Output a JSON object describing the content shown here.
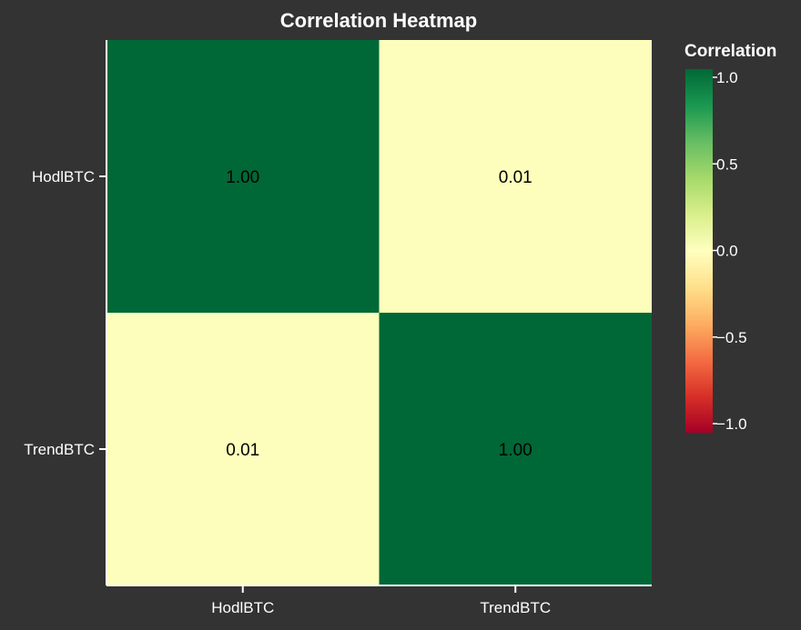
{
  "chart_data": {
    "type": "heatmap",
    "title": "Correlation Heatmap",
    "x_categories": [
      "HodlBTC",
      "TrendBTC"
    ],
    "y_categories": [
      "HodlBTC",
      "TrendBTC"
    ],
    "values": [
      [
        1.0,
        0.01
      ],
      [
        0.01,
        1.0
      ]
    ],
    "cell_labels": [
      [
        "1.00",
        "0.01"
      ],
      [
        "0.01",
        "1.00"
      ]
    ],
    "value_range": [
      -1.0,
      1.0
    ],
    "colorscale": "red-yellow-green",
    "legend": {
      "title": "Correlation",
      "ticks": [
        1.0,
        0.5,
        0.0,
        -0.5,
        -1.0
      ],
      "tick_labels": [
        "1.0",
        "0.5",
        "0.0",
        "−0.5",
        "−1.0"
      ],
      "position": "right"
    },
    "grid": false
  },
  "colors": {
    "background": "#333333",
    "text": "#ffffff",
    "axis": "#ffffff",
    "cell_text": "#000000"
  }
}
